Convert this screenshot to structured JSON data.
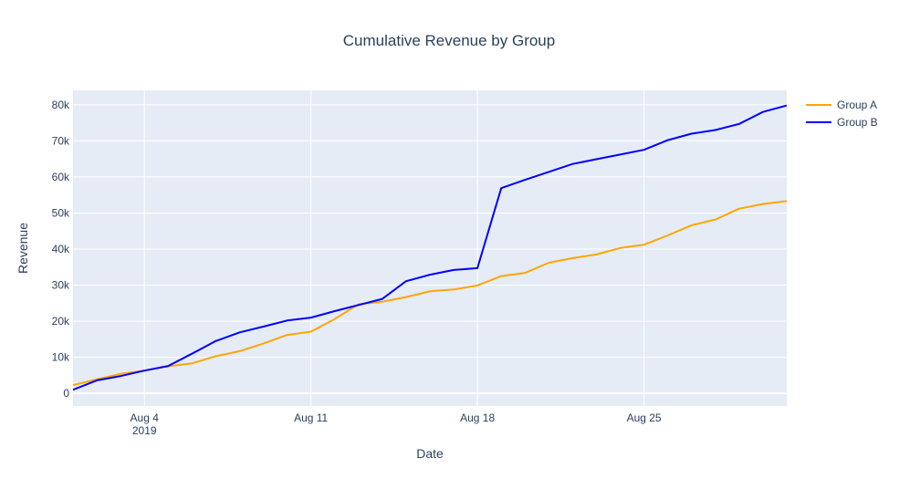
{
  "chart_data": {
    "type": "line",
    "title": "Cumulative Revenue by Group",
    "xlabel": "Date",
    "ylabel": "Revenue",
    "x_range": [
      "2019-08-01",
      "2019-08-31"
    ],
    "ylim": [
      -3500,
      84000
    ],
    "x_ticks": [
      {
        "date": "2019-08-04",
        "label": "Aug 4",
        "sublabel": "2019"
      },
      {
        "date": "2019-08-11",
        "label": "Aug 11",
        "sublabel": ""
      },
      {
        "date": "2019-08-18",
        "label": "Aug 18",
        "sublabel": ""
      },
      {
        "date": "2019-08-25",
        "label": "Aug 25",
        "sublabel": ""
      }
    ],
    "y_ticks": [
      {
        "value": 0,
        "label": "0"
      },
      {
        "value": 10000,
        "label": "10k"
      },
      {
        "value": 20000,
        "label": "20k"
      },
      {
        "value": 30000,
        "label": "30k"
      },
      {
        "value": 40000,
        "label": "40k"
      },
      {
        "value": 50000,
        "label": "50k"
      },
      {
        "value": 60000,
        "label": "60k"
      },
      {
        "value": 70000,
        "label": "70k"
      },
      {
        "value": 80000,
        "label": "80k"
      }
    ],
    "grid": true,
    "legend_position": "right",
    "plot_background": "#e5ecf6",
    "x": [
      "2019-08-01",
      "2019-08-02",
      "2019-08-03",
      "2019-08-04",
      "2019-08-05",
      "2019-08-06",
      "2019-08-07",
      "2019-08-08",
      "2019-08-09",
      "2019-08-10",
      "2019-08-11",
      "2019-08-12",
      "2019-08-13",
      "2019-08-14",
      "2019-08-15",
      "2019-08-16",
      "2019-08-17",
      "2019-08-18",
      "2019-08-19",
      "2019-08-20",
      "2019-08-21",
      "2019-08-22",
      "2019-08-23",
      "2019-08-24",
      "2019-08-25",
      "2019-08-26",
      "2019-08-27",
      "2019-08-28",
      "2019-08-29",
      "2019-08-30",
      "2019-08-31"
    ],
    "series": [
      {
        "name": "Group A",
        "color": "#ffa500",
        "values": [
          2300,
          3900,
          5400,
          6300,
          7500,
          8300,
          10300,
          11700,
          13800,
          16200,
          17100,
          20600,
          24700,
          25400,
          26700,
          28300,
          28800,
          29900,
          32500,
          33400,
          36200,
          37500,
          38500,
          40300,
          41200,
          43800,
          46600,
          48200,
          51200,
          52500,
          53300
        ]
      },
      {
        "name": "Group B",
        "color": "#0000ff",
        "values": [
          1000,
          3600,
          4800,
          6300,
          7600,
          11000,
          14500,
          16900,
          18500,
          20200,
          21000,
          22800,
          24500,
          26200,
          31100,
          32900,
          34200,
          34700,
          56900,
          59200,
          61400,
          63600,
          64900,
          66200,
          67500,
          70200,
          72000,
          73000,
          74700,
          78000,
          79800
        ]
      }
    ]
  }
}
